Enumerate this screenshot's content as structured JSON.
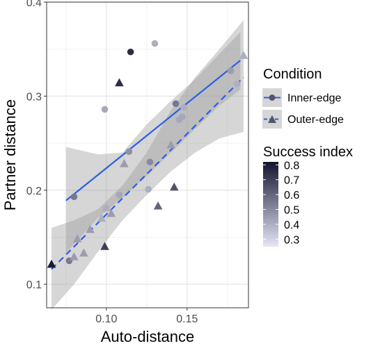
{
  "chart_data": {
    "type": "scatter",
    "xlabel": "Auto-distance",
    "ylabel": "Partner distance",
    "xlim": [
      0.063,
      0.188
    ],
    "ylim": [
      0.075,
      0.4
    ],
    "x_ticks": [
      0.1,
      0.15
    ],
    "x_tick_labels": [
      "0.10",
      "0.15"
    ],
    "y_ticks": [
      0.1,
      0.2,
      0.3,
      0.4
    ],
    "y_tick_labels": [
      "0.1",
      "0.2",
      "0.3",
      "0.4"
    ],
    "grid": true,
    "legend_position": "right",
    "color_legend": {
      "title": "Success index",
      "min": 0.25,
      "max": 0.82,
      "ticks": [
        0.8,
        0.7,
        0.6,
        0.5,
        0.4,
        0.3
      ],
      "tick_labels": [
        "0.8",
        "0.7",
        "0.6",
        "0.5",
        "0.4",
        "0.3"
      ],
      "low_color": "#e6e6f7",
      "high_color": "#13132e"
    },
    "shape_legend": {
      "title": "Condition",
      "entries": [
        "Inner-edge",
        "Outer-edge"
      ]
    },
    "series": [
      {
        "name": "Inner-edge",
        "marker": "circle",
        "line_style": "solid",
        "points": [
          {
            "x": 0.077,
            "y": 0.125,
            "s": 0.55
          },
          {
            "x": 0.08,
            "y": 0.193,
            "s": 0.55
          },
          {
            "x": 0.099,
            "y": 0.286,
            "s": 0.42
          },
          {
            "x": 0.1,
            "y": 0.181,
            "s": 0.4
          },
          {
            "x": 0.108,
            "y": 0.195,
            "s": 0.42
          },
          {
            "x": 0.114,
            "y": 0.241,
            "s": 0.48
          },
          {
            "x": 0.115,
            "y": 0.347,
            "s": 0.75
          },
          {
            "x": 0.126,
            "y": 0.201,
            "s": 0.4
          },
          {
            "x": 0.127,
            "y": 0.23,
            "s": 0.5
          },
          {
            "x": 0.13,
            "y": 0.356,
            "s": 0.4
          },
          {
            "x": 0.143,
            "y": 0.292,
            "s": 0.55
          },
          {
            "x": 0.145,
            "y": 0.275,
            "s": 0.42
          },
          {
            "x": 0.147,
            "y": 0.278,
            "s": 0.42
          },
          {
            "x": 0.148,
            "y": 0.288,
            "s": 0.4
          },
          {
            "x": 0.177,
            "y": 0.327,
            "s": 0.45
          },
          {
            "x": 0.181,
            "y": 0.313,
            "s": 0.4
          }
        ],
        "fit": {
          "x": [
            0.075,
            0.183
          ],
          "y": [
            0.189,
            0.338
          ]
        },
        "ci_upper": [
          [
            0.075,
            0.246
          ],
          [
            0.095,
            0.238
          ],
          [
            0.11,
            0.24
          ],
          [
            0.125,
            0.27
          ],
          [
            0.14,
            0.295
          ],
          [
            0.155,
            0.318
          ],
          [
            0.17,
            0.345
          ],
          [
            0.183,
            0.368
          ]
        ],
        "ci_lower": [
          [
            0.075,
            0.133
          ],
          [
            0.095,
            0.171
          ],
          [
            0.11,
            0.192
          ],
          [
            0.125,
            0.215
          ],
          [
            0.14,
            0.24
          ],
          [
            0.155,
            0.265
          ],
          [
            0.17,
            0.29
          ],
          [
            0.183,
            0.307
          ]
        ]
      },
      {
        "name": "Outer-edge",
        "marker": "triangle",
        "line_style": "dashed",
        "points": [
          {
            "x": 0.066,
            "y": 0.121,
            "s": 0.8
          },
          {
            "x": 0.08,
            "y": 0.129,
            "s": 0.45
          },
          {
            "x": 0.082,
            "y": 0.148,
            "s": 0.45
          },
          {
            "x": 0.086,
            "y": 0.133,
            "s": 0.45
          },
          {
            "x": 0.09,
            "y": 0.158,
            "s": 0.45
          },
          {
            "x": 0.097,
            "y": 0.17,
            "s": 0.4
          },
          {
            "x": 0.099,
            "y": 0.14,
            "s": 0.7
          },
          {
            "x": 0.1,
            "y": 0.181,
            "s": 0.4
          },
          {
            "x": 0.103,
            "y": 0.175,
            "s": 0.45
          },
          {
            "x": 0.108,
            "y": 0.314,
            "s": 0.75
          },
          {
            "x": 0.111,
            "y": 0.228,
            "s": 0.45
          },
          {
            "x": 0.132,
            "y": 0.183,
            "s": 0.6
          },
          {
            "x": 0.14,
            "y": 0.248,
            "s": 0.45
          },
          {
            "x": 0.142,
            "y": 0.203,
            "s": 0.65
          },
          {
            "x": 0.185,
            "y": 0.343,
            "s": 0.4
          }
        ],
        "fit": {
          "x": [
            0.066,
            0.185
          ],
          "y": [
            0.116,
            0.32
          ]
        },
        "ci_upper": [
          [
            0.066,
            0.16
          ],
          [
            0.08,
            0.168
          ],
          [
            0.095,
            0.18
          ],
          [
            0.11,
            0.205
          ],
          [
            0.125,
            0.24
          ],
          [
            0.14,
            0.285
          ],
          [
            0.155,
            0.32
          ],
          [
            0.17,
            0.35
          ],
          [
            0.185,
            0.381
          ]
        ],
        "ci_lower": [
          [
            0.066,
            0.073
          ],
          [
            0.08,
            0.1
          ],
          [
            0.095,
            0.135
          ],
          [
            0.11,
            0.168
          ],
          [
            0.125,
            0.195
          ],
          [
            0.14,
            0.22
          ],
          [
            0.155,
            0.24
          ],
          [
            0.17,
            0.255
          ],
          [
            0.185,
            0.262
          ]
        ]
      }
    ],
    "fit_color": "#2a5ee8",
    "band_color": "#999999"
  }
}
